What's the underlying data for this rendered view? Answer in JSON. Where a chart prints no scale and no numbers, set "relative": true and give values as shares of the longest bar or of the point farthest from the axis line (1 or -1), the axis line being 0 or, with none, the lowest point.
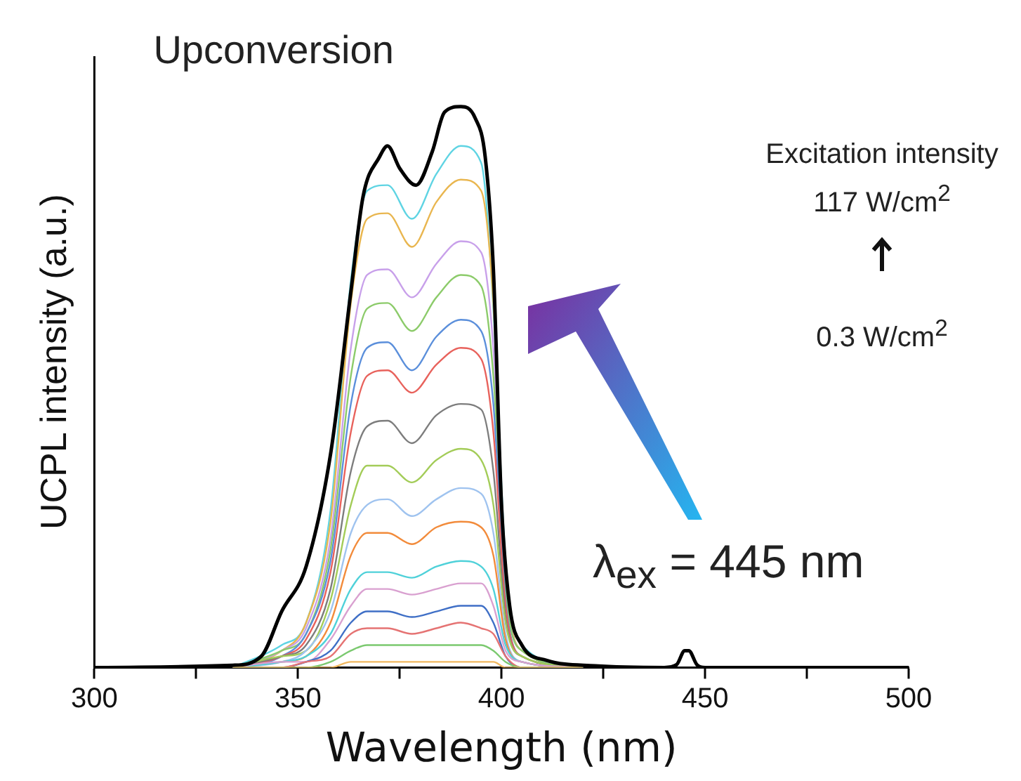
{
  "chart_data": {
    "type": "line",
    "relative": true,
    "xlabel": "Wavelength (nm)",
    "ylabel": "UCPL intensity (a.u.)",
    "xlim": [
      300,
      500
    ],
    "xticks": [
      300,
      {
        "value": 325,
        "label": null
      },
      350,
      {
        "value": 375,
        "label": null
      },
      400,
      {
        "value": 425,
        "label": null
      },
      450,
      {
        "value": 475,
        "label": null
      },
      500
    ],
    "grid": false,
    "legend": false,
    "marker": "none",
    "line_style": "solid",
    "annotations": [
      "Upconversion",
      "Excitation intensity",
      "117 W/cm$^{2}$",
      "0.3 W/cm$^{2}$",
      "λ$_{ex}$ = 445 nm"
    ],
    "x": [
      334,
      346,
      352,
      358,
      363,
      367,
      372,
      378,
      384,
      390,
      395,
      398,
      401,
      405,
      420
    ],
    "series": [
      {
        "color": "#5fd4e3",
        "values": [
          0,
          0.04,
          0.08,
          0.28,
          0.69,
          0.85,
          0.86,
          0.8,
          0.88,
          0.93,
          0.9,
          0.64,
          0.19,
          0.04,
          0
        ]
      },
      {
        "color": "#e9b64f",
        "values": [
          0,
          0.03,
          0.08,
          0.26,
          0.65,
          0.8,
          0.81,
          0.75,
          0.83,
          0.87,
          0.85,
          0.65,
          0.17,
          0.03,
          0
        ]
      },
      {
        "color": "#c8a0ea",
        "values": [
          0,
          0.03,
          0.07,
          0.23,
          0.57,
          0.7,
          0.71,
          0.66,
          0.72,
          0.76,
          0.74,
          0.57,
          0.15,
          0.03,
          0
        ]
      },
      {
        "color": "#8ccb6a",
        "values": [
          0,
          0.03,
          0.06,
          0.21,
          0.52,
          0.64,
          0.65,
          0.6,
          0.66,
          0.7,
          0.68,
          0.52,
          0.14,
          0.03,
          0
        ]
      },
      {
        "color": "#5b8fdb",
        "values": [
          0,
          0.02,
          0.06,
          0.19,
          0.47,
          0.57,
          0.58,
          0.53,
          0.59,
          0.62,
          0.6,
          0.47,
          0.12,
          0.02,
          0
        ]
      },
      {
        "color": "#e8625c",
        "values": [
          0,
          0.02,
          0.05,
          0.17,
          0.42,
          0.52,
          0.53,
          0.49,
          0.54,
          0.57,
          0.55,
          0.42,
          0.11,
          0.02,
          0
        ]
      },
      {
        "color": "#7d7d7d",
        "values": [
          0,
          0.02,
          0.04,
          0.14,
          0.35,
          0.43,
          0.44,
          0.4,
          0.45,
          0.47,
          0.46,
          0.35,
          0.09,
          0.02,
          0
        ]
      },
      {
        "color": "#a3cc58",
        "values": [
          0,
          0.02,
          0.03,
          0.12,
          0.29,
          0.36,
          0.36,
          0.33,
          0.37,
          0.39,
          0.37,
          0.29,
          0.08,
          0.02,
          0
        ]
      },
      {
        "color": "#9fc3ef",
        "values": [
          0,
          0.01,
          0.03,
          0.1,
          0.24,
          0.29,
          0.3,
          0.27,
          0.3,
          0.32,
          0.31,
          0.24,
          0.06,
          0.01,
          0
        ]
      },
      {
        "color": "#f28b3b",
        "values": [
          0,
          0.01,
          0.02,
          0.08,
          0.2,
          0.24,
          0.24,
          0.22,
          0.25,
          0.26,
          0.25,
          0.2,
          0.05,
          0.01,
          0
        ]
      },
      {
        "color": "#4fd1d9",
        "values": [
          0,
          0.01,
          0.02,
          0.06,
          0.14,
          0.17,
          0.17,
          0.16,
          0.18,
          0.19,
          0.18,
          0.14,
          0.04,
          0.01,
          0
        ]
      },
      {
        "color": "#d9a0d0",
        "values": [
          0,
          0.01,
          0.01,
          0.05,
          0.11,
          0.14,
          0.14,
          0.13,
          0.14,
          0.15,
          0.15,
          0.11,
          0.03,
          0.01,
          0
        ]
      },
      {
        "color": "#3f6fc6",
        "values": [
          0,
          0,
          0.01,
          0.03,
          0.08,
          0.1,
          0.1,
          0.09,
          0.1,
          0.11,
          0.11,
          0.08,
          0.02,
          0,
          0
        ]
      },
      {
        "color": "#e57373",
        "values": [
          0,
          0,
          0.01,
          0.02,
          0.06,
          0.07,
          0.07,
          0.06,
          0.07,
          0.08,
          0.07,
          0.06,
          0.02,
          0,
          0
        ]
      },
      {
        "color": "#7bc96f",
        "values": [
          0,
          0,
          0,
          0.01,
          0.03,
          0.04,
          0.04,
          0.04,
          0.04,
          0.04,
          0.04,
          0.03,
          0.01,
          0,
          0
        ]
      },
      {
        "color": "#f0b860",
        "values": [
          0,
          0,
          0,
          0,
          0.01,
          0.01,
          0.01,
          0.01,
          0.01,
          0.01,
          0.01,
          0.01,
          0,
          0,
          0
        ]
      },
      {
        "color": "#000000",
        "x": [
          300,
          334,
          341,
          346,
          352,
          358,
          363,
          366,
          370,
          372,
          375,
          379,
          383,
          386,
          390,
          393.5,
          396,
          398,
          400,
          402,
          405,
          411,
          423,
          440,
          443,
          445,
          446,
          448,
          450,
          500
        ],
        "values": [
          0,
          0.004,
          0.02,
          0.1,
          0.18,
          0.38,
          0.67,
          0.84,
          0.91,
          0.93,
          0.89,
          0.86,
          0.92,
          0.99,
          1,
          0.98,
          0.91,
          0.71,
          0.29,
          0.11,
          0.04,
          0.013,
          0.003,
          0,
          0.005,
          0.03,
          0.03,
          0.005,
          0,
          0
        ]
      }
    ]
  }
}
